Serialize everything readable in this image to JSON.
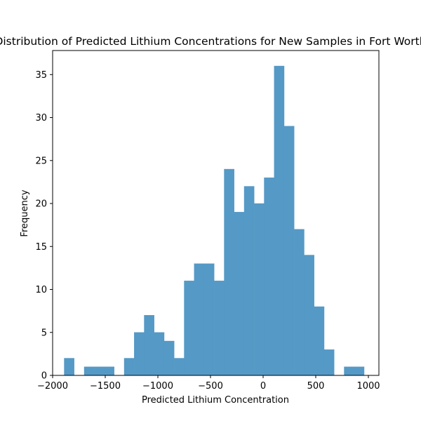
{
  "chart_data": {
    "type": "bar",
    "title": "Distribution of Predicted Lithium Concentrations for New Samples in Fort Worth",
    "xlabel": "Predicted Lithium Concentration",
    "ylabel": "Frequency",
    "xlim": [
      -2000,
      1100
    ],
    "ylim": [
      0,
      37.8
    ],
    "xticks": [
      -2000,
      -1500,
      -1000,
      -500,
      0,
      500,
      1000
    ],
    "xtick_labels": [
      "−2000",
      "−1500",
      "−1000",
      "−500",
      "0",
      "500",
      "1000"
    ],
    "yticks": [
      0,
      5,
      10,
      15,
      20,
      25,
      30,
      35
    ],
    "ytick_labels": [
      "0",
      "5",
      "10",
      "15",
      "20",
      "25",
      "30",
      "35"
    ],
    "bin_edges": [
      -1890,
      -1795,
      -1700,
      -1605,
      -1510,
      -1415,
      -1320,
      -1225,
      -1130,
      -1035,
      -940,
      -845,
      -750,
      -655,
      -560,
      -465,
      -370,
      -275,
      -180,
      -85,
      10,
      105,
      200,
      295,
      390,
      485,
      580,
      675,
      770,
      865,
      960
    ],
    "values": [
      2,
      0,
      1,
      1,
      1,
      0,
      2,
      5,
      7,
      5,
      4,
      2,
      11,
      13,
      13,
      11,
      24,
      19,
      22,
      20,
      23,
      36,
      29,
      17,
      14,
      8,
      3,
      0,
      1,
      1
    ],
    "bar_color": "#5599c6",
    "grid": false
  }
}
